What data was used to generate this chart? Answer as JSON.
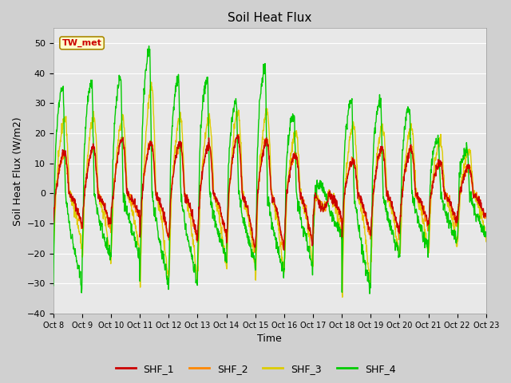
{
  "title": "Soil Heat Flux",
  "ylabel": "Soil Heat Flux (W/m2)",
  "xlabel": "Time",
  "annotation": "TW_met",
  "ylim": [
    -40,
    55
  ],
  "yticks": [
    -40,
    -30,
    -20,
    -10,
    0,
    10,
    20,
    30,
    40,
    50
  ],
  "xtick_labels": [
    "Oct 8",
    "Oct 9",
    "Oct 10",
    "Oct 11",
    "Oct 12",
    "Oct 13",
    "Oct 14",
    "Oct 15",
    "Oct 16",
    "Oct 17",
    "Oct 18",
    "Oct 19",
    "Oct 20",
    "Oct 21",
    "Oct 22",
    "Oct 23"
  ],
  "colors": {
    "SHF_1": "#cc0000",
    "SHF_2": "#ff8800",
    "SHF_3": "#ddcc00",
    "SHF_4": "#00cc00"
  },
  "fig_bg": "#d0d0d0",
  "plot_bg": "#e8e8e8",
  "grid_color": "#ffffff",
  "title_fontsize": 11,
  "tick_fontsize": 7,
  "axis_label_fontsize": 9,
  "annotation_fontcolor": "#cc0000",
  "annotation_bg": "#ffffcc",
  "annotation_border": "#aa8800",
  "linewidth": 1.0
}
